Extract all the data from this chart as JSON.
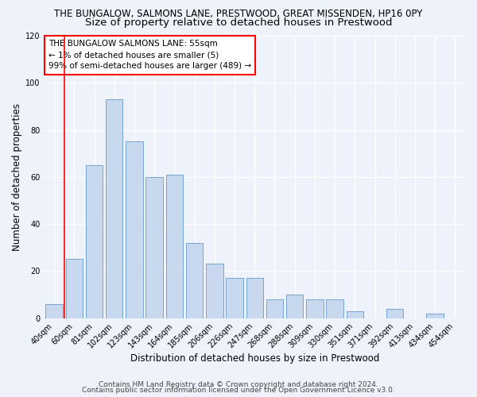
{
  "title_line1": "THE BUNGALOW, SALMONS LANE, PRESTWOOD, GREAT MISSENDEN, HP16 0PY",
  "title_line2": "Size of property relative to detached houses in Prestwood",
  "xlabel": "Distribution of detached houses by size in Prestwood",
  "ylabel": "Number of detached properties",
  "categories": [
    "40sqm",
    "60sqm",
    "81sqm",
    "102sqm",
    "123sqm",
    "143sqm",
    "164sqm",
    "185sqm",
    "206sqm",
    "226sqm",
    "247sqm",
    "268sqm",
    "288sqm",
    "309sqm",
    "330sqm",
    "351sqm",
    "371sqm",
    "392sqm",
    "413sqm",
    "434sqm",
    "454sqm"
  ],
  "values": [
    6,
    25,
    65,
    93,
    75,
    60,
    61,
    32,
    23,
    17,
    17,
    8,
    10,
    8,
    8,
    3,
    0,
    4,
    0,
    2,
    0
  ],
  "bar_color": "#c8d9ef",
  "bar_edge_color": "#6699cc",
  "background_color": "#eef2fa",
  "grid_color": "#ffffff",
  "ylim": [
    0,
    120
  ],
  "yticks": [
    0,
    20,
    40,
    60,
    80,
    100,
    120
  ],
  "annotation_text": "THE BUNGALOW SALMONS LANE: 55sqm\n← 1% of detached houses are smaller (5)\n99% of semi-detached houses are larger (489) →",
  "footer_line1": "Contains HM Land Registry data © Crown copyright and database right 2024.",
  "footer_line2": "Contains public sector information licensed under the Open Government Licence v3.0.",
  "title1_fontsize": 8.5,
  "title2_fontsize": 9.5,
  "axis_label_fontsize": 8.5,
  "tick_fontsize": 7,
  "annotation_fontsize": 7.5,
  "footer_fontsize": 6.5
}
